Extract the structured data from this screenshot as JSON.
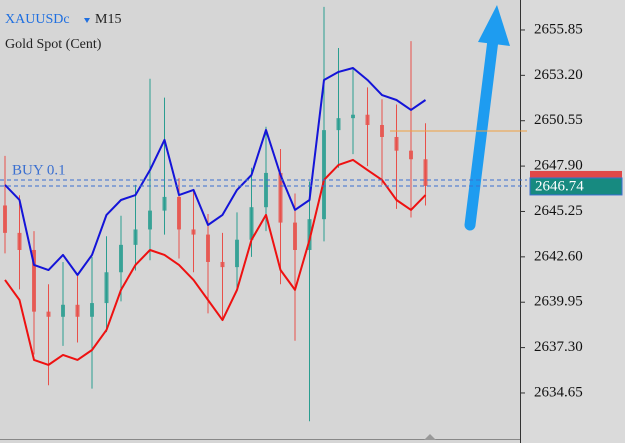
{
  "chart_data": {
    "type": "candlestick",
    "symbol": "XAUUSDc",
    "timeframe": "M15",
    "description": "Gold Spot (Cent)",
    "ylim": [
      2632.02,
      2657.6
    ],
    "yticks": [
      2634.65,
      {
        "value": 2637.3,
        "label": "2637.30"
      },
      2639.95,
      {
        "value": 2642.6,
        "label": "2642.60"
      },
      2645.25,
      {
        "value": 2647.9,
        "label": "2647.90"
      },
      2650.55,
      {
        "value": 2653.2,
        "label": "2653.20"
      },
      2655.85
    ],
    "up_color": "#2a9d90",
    "down_color": "#e8504a",
    "open": [
      2645.6,
      2644.0,
      2643.0,
      2639.4,
      2639.1,
      2639.8,
      2639.1,
      2639.9,
      2641.7,
      2643.3,
      2644.2,
      2645.3,
      2646.1,
      2644.2,
      2643.9,
      2642.3,
      2642.0,
      2643.6,
      2645.5,
      2647.5,
      2644.6,
      2643.0,
      2644.8,
      2650.0,
      2650.7,
      2650.9,
      2650.3,
      2649.6,
      2648.8,
      2648.3
    ],
    "high": [
      2648.5,
      2646.2,
      2644.1,
      2641.0,
      2642.3,
      2641.5,
      2642.6,
      2643.8,
      2645.0,
      2646.8,
      2653.0,
      2651.9,
      2647.2,
      2646.5,
      2645.1,
      2644.0,
      2645.2,
      2647.8,
      2650.2,
      2648.9,
      2646.3,
      2647.0,
      2657.2,
      2654.8,
      2653.6,
      2652.5,
      2651.8,
      2651.5,
      2655.2,
      2650.4
    ],
    "low": [
      2642.8,
      2640.7,
      2636.9,
      2635.1,
      2637.4,
      2637.6,
      2634.9,
      2638.2,
      2640.0,
      2641.8,
      2642.4,
      2643.9,
      2642.5,
      2641.7,
      2639.3,
      2639.0,
      2640.6,
      2642.6,
      2644.1,
      2641.0,
      2637.7,
      2633.0,
      2643.5,
      2647.8,
      2648.6,
      2647.9,
      2646.8,
      2645.4,
      2644.9,
      2645.6
    ],
    "close": [
      2644.0,
      2643.0,
      2639.4,
      2639.1,
      2639.8,
      2639.1,
      2639.9,
      2641.7,
      2643.3,
      2644.2,
      2645.3,
      2646.1,
      2644.2,
      2643.9,
      2642.3,
      2642.0,
      2643.6,
      2645.5,
      2647.5,
      2644.6,
      2643.0,
      2644.8,
      2650.0,
      2650.7,
      2650.9,
      2650.3,
      2649.6,
      2648.8,
      2648.3,
      2646.74
    ],
    "lines": [
      {
        "color": "#1414d8",
        "values": [
          2646.8,
          2645.92,
          2642.13,
          2641.83,
          2642.71,
          2641.54,
          2642.71,
          2645.05,
          2645.92,
          2646.21,
          2647.67,
          2649.43,
          2646.21,
          2646.51,
          2644.46,
          2645.05,
          2646.51,
          2647.38,
          2650.01,
          2647.38,
          2645.34,
          2645.92,
          2652.93,
          2653.4,
          2653.63,
          2652.93,
          2652.05,
          2651.76,
          2651.18,
          2651.76
        ]
      },
      {
        "color": "#ee1111",
        "values": [
          2641.25,
          2640.08,
          2636.58,
          2636.29,
          2636.87,
          2636.58,
          2637.16,
          2638.33,
          2640.67,
          2642.13,
          2643.0,
          2642.71,
          2642.13,
          2641.25,
          2640.08,
          2638.91,
          2640.67,
          2643.59,
          2645.05,
          2641.83,
          2640.67,
          2643.59,
          2647.09,
          2647.97,
          2648.26,
          2647.67,
          2647.09,
          2645.92,
          2645.34,
          2646.21
        ]
      }
    ],
    "level_line": 2649.95,
    "level_color": "#f0a040",
    "order_label": "BUY 0.1",
    "order_price": 2647.09,
    "bid": 2646.74
  }
}
